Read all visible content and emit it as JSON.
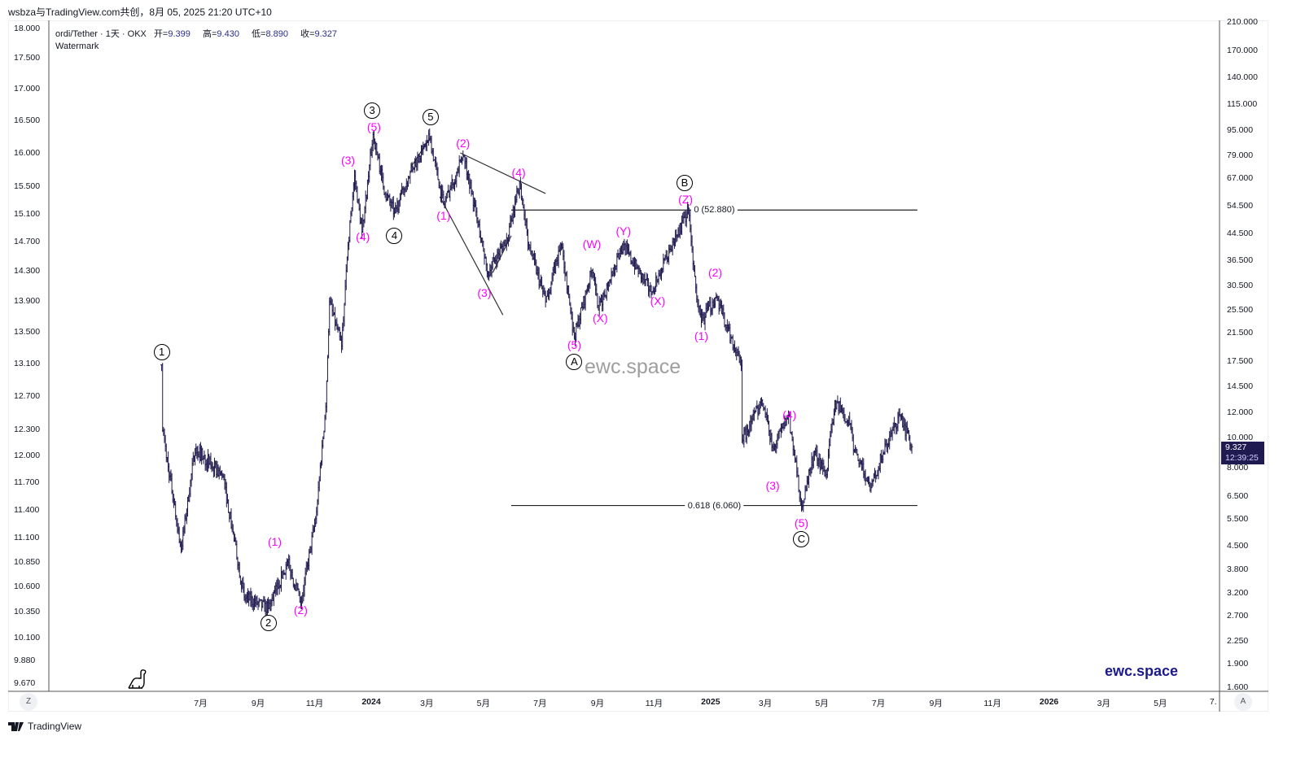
{
  "header": {
    "attribution": "wsbza与TradingView.com共创，8月 05, 2025 21:20 UTC+10"
  },
  "legend": {
    "symbol": "ordi/Tether · 1天 · OKX",
    "open_label": "开=",
    "open": "9.399",
    "high_label": "高=",
    "high": "9.430",
    "low_label": "低=",
    "low": "8.890",
    "close_label": "收=",
    "close": "9.327",
    "indicator": "Watermark"
  },
  "watermark": {
    "center": "ewc.space",
    "brand": "ewc.space"
  },
  "price_label": {
    "price": "9.327",
    "countdown": "12:39:25"
  },
  "axis_buttons": {
    "left": "Z",
    "right": "A"
  },
  "footer": {
    "brand": "TradingView"
  },
  "colors": {
    "candle": "#1f1a4f",
    "wave_minor": "#ff00ff",
    "wave_major": "#000000",
    "price_box": "#1f1a4f"
  },
  "chart_data": {
    "type": "candlestick",
    "title": "ordi/Tether · 1天 · OKX",
    "x_unit": "days since 2024-01-01",
    "y_scale": "log",
    "ylim": [
      1.6,
      210
    ],
    "right_axis_ticks": [
      "210.000",
      "170.000",
      "140.000",
      "115.000",
      "95.000",
      "79.000",
      "67.000",
      "54.500",
      "44.500",
      "36.500",
      "30.500",
      "25.500",
      "21.500",
      "17.500",
      "14.500",
      "12.000",
      "10.000",
      "8.000",
      "6.500",
      "5.500",
      "4.500",
      "3.800",
      "3.200",
      "2.700",
      "2.250",
      "1.900",
      "1.600"
    ],
    "left_axis_ticks": [
      "18.000",
      "17.500",
      "17.000",
      "16.500",
      "16.000",
      "15.500",
      "15.100",
      "14.700",
      "14.300",
      "13.900",
      "13.500",
      "13.100",
      "12.700",
      "12.300",
      "12.000",
      "11.700",
      "11.400",
      "11.100",
      "10.850",
      "10.600",
      "10.350",
      "10.100",
      "9.880",
      "9.670"
    ],
    "left_axis_range": [
      9.67,
      18.0
    ],
    "time_ticks": [
      {
        "label": "7月",
        "day": -184
      },
      {
        "label": "9月",
        "day": -122
      },
      {
        "label": "11月",
        "day": -61
      },
      {
        "label": "2024",
        "day": 0,
        "bold": true
      },
      {
        "label": "3月",
        "day": 60
      },
      {
        "label": "5月",
        "day": 121
      },
      {
        "label": "7月",
        "day": 182
      },
      {
        "label": "9月",
        "day": 244
      },
      {
        "label": "11月",
        "day": 305
      },
      {
        "label": "2025",
        "day": 366,
        "bold": true
      },
      {
        "label": "3月",
        "day": 425
      },
      {
        "label": "5月",
        "day": 486
      },
      {
        "label": "7月",
        "day": 547
      },
      {
        "label": "9月",
        "day": 609
      },
      {
        "label": "11月",
        "day": 670
      },
      {
        "label": "2026",
        "day": 731,
        "bold": true
      },
      {
        "label": "3月",
        "day": 790
      },
      {
        "label": "5月",
        "day": 851
      },
      {
        "label": "7.",
        "day": 908
      }
    ],
    "price_path": [
      [
        -226,
        17.0
      ],
      [
        -225,
        10.5
      ],
      [
        -205,
        4.4
      ],
      [
        -190,
        9.2
      ],
      [
        -160,
        7.5
      ],
      [
        -137,
        3.1
      ],
      [
        -111,
        2.85
      ],
      [
        -90,
        4.0
      ],
      [
        -76,
        2.95
      ],
      [
        -60,
        5.5
      ],
      [
        -49,
        12.5
      ],
      [
        -45,
        27
      ],
      [
        -32,
        19.5
      ],
      [
        -25,
        41
      ],
      [
        -18,
        68
      ],
      [
        -10,
        45
      ],
      [
        2,
        92
      ],
      [
        15,
        60
      ],
      [
        25,
        52
      ],
      [
        47,
        75
      ],
      [
        63,
        89.5
      ],
      [
        78,
        55
      ],
      [
        100,
        79
      ],
      [
        126,
        33.4
      ],
      [
        148,
        44
      ],
      [
        160,
        64.5
      ],
      [
        170,
        41
      ],
      [
        188,
        27
      ],
      [
        205,
        41
      ],
      [
        219,
        20.8
      ],
      [
        238,
        34
      ],
      [
        245,
        25.4
      ],
      [
        271,
        41
      ],
      [
        302,
        29
      ],
      [
        342,
        52.9
      ],
      [
        350,
        30
      ],
      [
        356,
        23.2
      ],
      [
        372,
        28
      ],
      [
        399,
        16.9
      ],
      [
        400,
        9.8
      ],
      [
        421,
        13.1
      ],
      [
        434,
        9.2
      ],
      [
        450,
        11.8
      ],
      [
        464,
        6.06
      ],
      [
        478,
        9
      ],
      [
        491,
        7.6
      ],
      [
        500,
        13
      ],
      [
        517,
        11
      ],
      [
        521,
        9
      ],
      [
        539,
        6.9
      ],
      [
        552,
        8.9
      ],
      [
        570,
        11.8
      ],
      [
        583,
        9.33
      ]
    ],
    "wave_labels": [
      {
        "text": "1",
        "style": "major",
        "day": -226,
        "price": 18.6
      },
      {
        "text": "2",
        "style": "major",
        "day": -111,
        "price": 2.56
      },
      {
        "text": "(1)",
        "style": "minor",
        "day": -104,
        "price": 4.65
      },
      {
        "text": "(2)",
        "style": "minor",
        "day": -76,
        "price": 2.82
      },
      {
        "text": "(3)",
        "style": "minor",
        "day": -25,
        "price": 76.2
      },
      {
        "text": "(4)",
        "style": "minor",
        "day": -9,
        "price": 43.5
      },
      {
        "text": "3",
        "style": "major",
        "day": 1,
        "price": 109.6
      },
      {
        "text": "(5)",
        "style": "minor",
        "day": 3,
        "price": 97.3
      },
      {
        "text": "4",
        "style": "major",
        "day": 25,
        "price": 43.8
      },
      {
        "text": "5",
        "style": "major",
        "day": 64,
        "price": 104.5
      },
      {
        "text": "(1)",
        "style": "minor",
        "day": 78,
        "price": 50.8
      },
      {
        "text": "(2)",
        "style": "minor",
        "day": 99,
        "price": 86.4
      },
      {
        "text": "(3)",
        "style": "minor",
        "day": 122,
        "price": 28.8
      },
      {
        "text": "(4)",
        "style": "minor",
        "day": 159,
        "price": 69.7
      },
      {
        "text": "(5)",
        "style": "minor",
        "day": 219,
        "price": 19.7
      },
      {
        "text": "A",
        "style": "major",
        "day": 219,
        "price": 17.4
      },
      {
        "text": "(W)",
        "style": "minor",
        "day": 238,
        "price": 41.2
      },
      {
        "text": "(X)",
        "style": "minor",
        "day": 247,
        "price": 24.0
      },
      {
        "text": "(Y)",
        "style": "minor",
        "day": 272,
        "price": 45.4
      },
      {
        "text": "(X)",
        "style": "minor",
        "day": 309,
        "price": 27.2
      },
      {
        "text": "B",
        "style": "major",
        "day": 338,
        "price": 64.5
      },
      {
        "text": "(Z)",
        "style": "minor",
        "day": 339,
        "price": 57.2
      },
      {
        "text": "(1)",
        "style": "minor",
        "day": 356,
        "price": 21.0
      },
      {
        "text": "(2)",
        "style": "minor",
        "day": 371,
        "price": 33.5
      },
      {
        "text": "(3)",
        "style": "minor",
        "day": 433,
        "price": 7.0
      },
      {
        "text": "(4)",
        "style": "minor",
        "day": 451,
        "price": 11.8
      },
      {
        "text": "(5)",
        "style": "minor",
        "day": 464,
        "price": 5.33
      },
      {
        "text": "C",
        "style": "major",
        "day": 464,
        "price": 4.73
      }
    ],
    "trend_lines": [
      [
        [
          96,
          80.4
        ],
        [
          188,
          59.7
        ]
      ],
      [
        [
          74,
          58.3
        ],
        [
          142,
          24.5
        ]
      ],
      [
        [
          43,
          72.6
        ],
        [
          63,
          89.5
        ]
      ],
      [
        [
          131,
          33.4
        ],
        [
          151,
          43.8
        ]
      ]
    ],
    "fib_levels": [
      {
        "label": "0 (52.880)",
        "price": 52.88,
        "from_day": 151,
        "to_day": 589,
        "label_day": 370
      },
      {
        "label": "0.618 (6.060)",
        "price": 6.06,
        "from_day": 151,
        "to_day": 589,
        "label_day": 370
      }
    ]
  }
}
